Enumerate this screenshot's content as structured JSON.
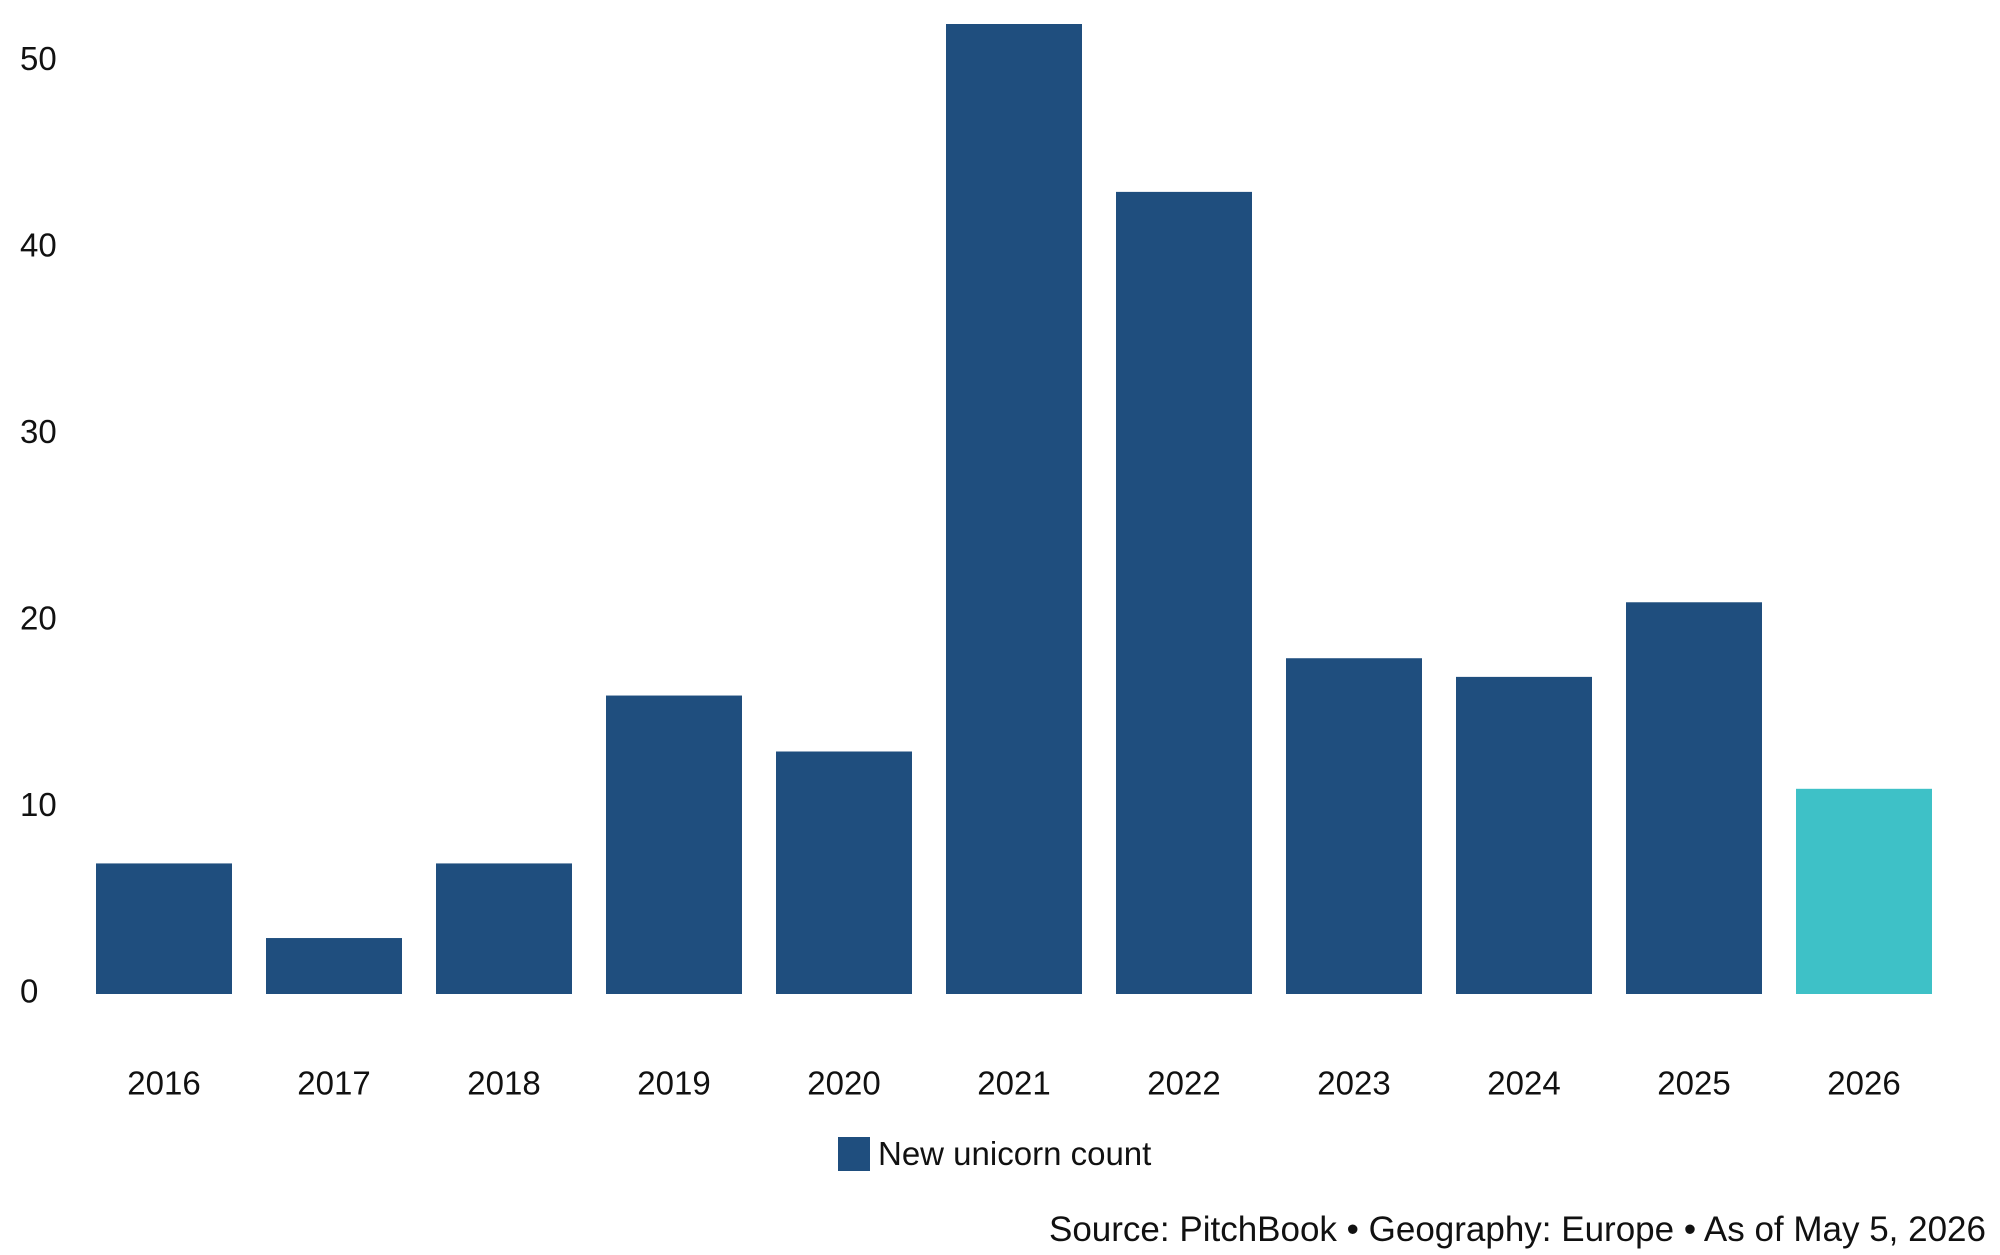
{
  "chart_data": {
    "type": "bar",
    "categories": [
      "2016",
      "2017",
      "2018",
      "2019",
      "2020",
      "2021",
      "2022",
      "2023",
      "2024",
      "2025",
      "2026"
    ],
    "series": [
      {
        "name": "New unicorn count",
        "values": [
          7,
          3,
          7,
          16,
          13,
          52,
          43,
          18,
          17,
          21,
          11
        ],
        "color": "#1f4e7e"
      }
    ],
    "highlight": {
      "category": "2026",
      "color": "#3ec1c7"
    },
    "yticks": [
      "0",
      "10",
      "20",
      "30",
      "40",
      "50"
    ],
    "ylim": [
      0,
      52
    ],
    "grid": false,
    "legend_position": "bottom-center",
    "title": "",
    "xlabel": "",
    "ylabel": ""
  },
  "legend": {
    "label": "New unicorn count",
    "color": "#1f4e7e"
  },
  "source_note": "Source: PitchBook • Geography: Europe • As of May 5, 2026"
}
